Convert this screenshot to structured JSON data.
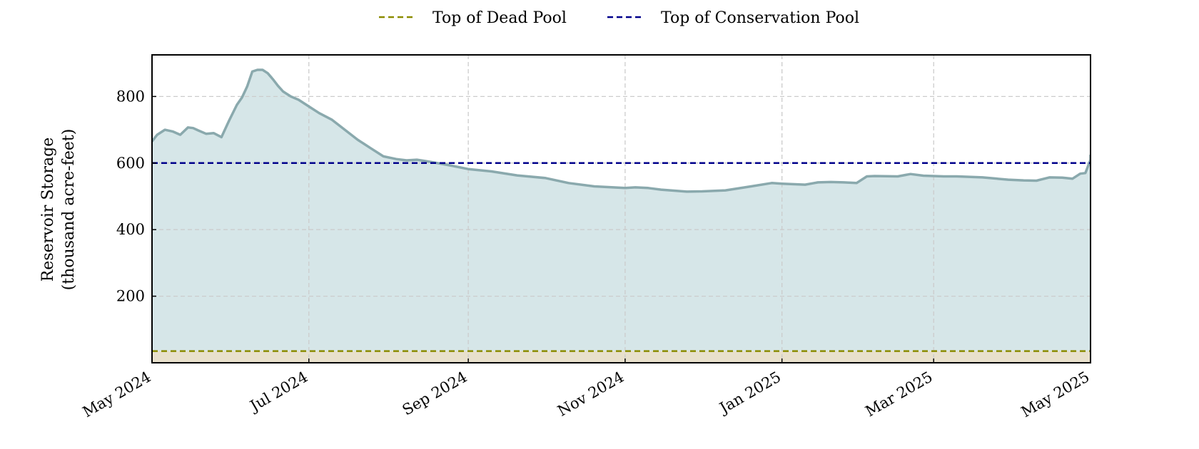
{
  "chart_data": {
    "type": "area",
    "title": "",
    "xlabel": "",
    "ylabel": "Reservoir Storage",
    "ylabel_line2": "(thousand acre-feet)",
    "x_tick_labels": [
      "May 2024",
      "Jul 2024",
      "Sep 2024",
      "Nov 2024",
      "Jan 2025",
      "Mar 2025",
      "May 2025"
    ],
    "x_tick_dates": [
      "2024-05-01",
      "2024-07-01",
      "2024-09-01",
      "2024-11-01",
      "2025-01-01",
      "2025-03-01",
      "2025-05-01"
    ],
    "y_tick_labels": [
      "200",
      "400",
      "600",
      "800"
    ],
    "y_ticks": [
      200,
      400,
      600,
      800
    ],
    "xlim": [
      "2024-05-01",
      "2025-05-01"
    ],
    "ylim": [
      0,
      925
    ],
    "grid": true,
    "legend_position": "top-center",
    "legend": [
      {
        "name": "Top of Dead Pool",
        "color": "#8b8b00",
        "style": "dashed"
      },
      {
        "name": "Top of Conservation Pool",
        "color": "#00008b",
        "style": "dashed"
      }
    ],
    "reference_lines": [
      {
        "name": "Top of Dead Pool",
        "value": 35,
        "color": "#8b8b00"
      },
      {
        "name": "Top of Conservation Pool",
        "value": 600,
        "color": "#00008b"
      }
    ],
    "colors": {
      "storage_line": "#8aa9ad",
      "storage_fill": "#d6e6e8",
      "dead_pool_fill": "#e8e0cc"
    },
    "series": [
      {
        "x": [
          "2024-05-01",
          "2024-05-03",
          "2024-05-06",
          "2024-05-09",
          "2024-05-12",
          "2024-05-15",
          "2024-05-17",
          "2024-05-19",
          "2024-05-22",
          "2024-05-25",
          "2024-05-28",
          "2024-05-31",
          "2024-06-03",
          "2024-06-05",
          "2024-06-07",
          "2024-06-09",
          "2024-06-11",
          "2024-06-13",
          "2024-06-15",
          "2024-06-17",
          "2024-06-19",
          "2024-06-21",
          "2024-06-24",
          "2024-06-27",
          "2024-07-01",
          "2024-07-05",
          "2024-07-10",
          "2024-07-15",
          "2024-07-20",
          "2024-07-25",
          "2024-07-30",
          "2024-08-04",
          "2024-08-08",
          "2024-08-12",
          "2024-08-16",
          "2024-08-20",
          "2024-08-25",
          "2024-09-01",
          "2024-09-10",
          "2024-09-20",
          "2024-10-01",
          "2024-10-10",
          "2024-10-20",
          "2024-11-01",
          "2024-11-05",
          "2024-11-10",
          "2024-11-15",
          "2024-11-20",
          "2024-11-25",
          "2024-12-01",
          "2024-12-10",
          "2024-12-20",
          "2024-12-28",
          "2025-01-01",
          "2025-01-10",
          "2025-01-15",
          "2025-01-20",
          "2025-01-25",
          "2025-01-30",
          "2025-02-03",
          "2025-02-06",
          "2025-02-15",
          "2025-02-20",
          "2025-02-25",
          "2025-03-01",
          "2025-03-05",
          "2025-03-10",
          "2025-03-20",
          "2025-03-30",
          "2025-04-05",
          "2025-04-10",
          "2025-04-15",
          "2025-04-20",
          "2025-04-24",
          "2025-04-27",
          "2025-04-29",
          "2025-05-01",
          "2025-05-02"
        ],
        "values": [
          665,
          685,
          700,
          695,
          685,
          707,
          705,
          698,
          688,
          690,
          678,
          728,
          775,
          797,
          830,
          875,
          880,
          880,
          870,
          852,
          832,
          815,
          800,
          790,
          770,
          750,
          730,
          700,
          670,
          645,
          620,
          612,
          608,
          610,
          605,
          600,
          593,
          582,
          575,
          563,
          555,
          540,
          530,
          525,
          527,
          525,
          520,
          517,
          514,
          515,
          518,
          530,
          540,
          538,
          535,
          542,
          543,
          542,
          540,
          560,
          561,
          560,
          567,
          562,
          561,
          560,
          560,
          557,
          550,
          548,
          547,
          557,
          556,
          553,
          568,
          570,
          610,
          625
        ]
      }
    ]
  }
}
